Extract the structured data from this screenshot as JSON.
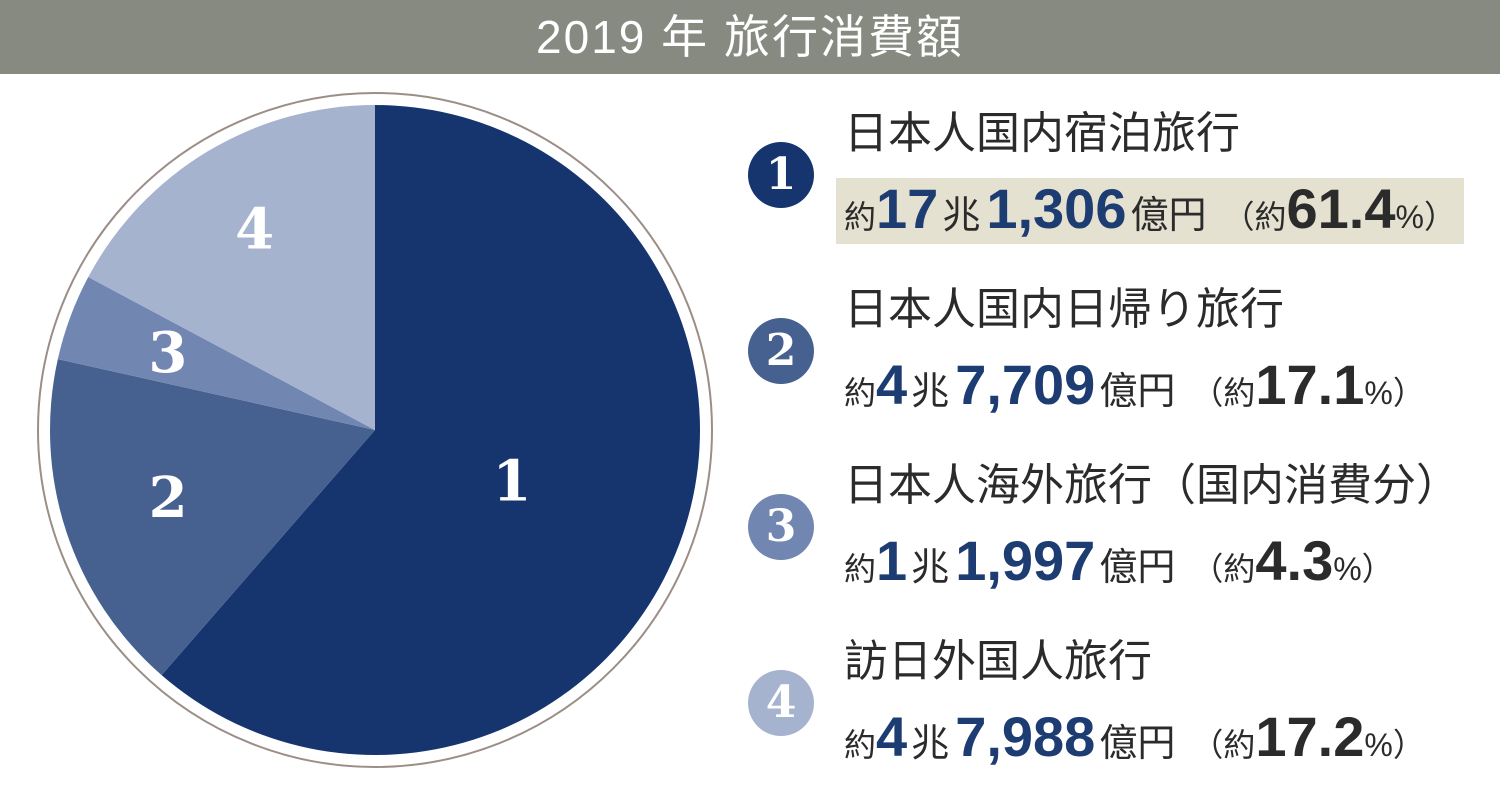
{
  "header": {
    "title": "2019 年 旅行消費額",
    "bg_color": "#878a80",
    "text_color": "#ffffff"
  },
  "chart_data": {
    "type": "pie",
    "title": "2019 年 旅行消費額",
    "unit": "億円",
    "direction": "clockwise",
    "start_angle_deg": 0,
    "categories": [
      "日本人国内宿泊旅行",
      "日本人国内日帰り旅行",
      "日本人海外旅行（国内消費分）",
      "訪日外国人旅行"
    ],
    "values_oku_yen": [
      171306,
      47709,
      11997,
      47988
    ],
    "percents": [
      61.4,
      17.1,
      4.3,
      17.2
    ],
    "slice_labels": [
      "1",
      "2",
      "3",
      "4"
    ],
    "colors": [
      "#16356f",
      "#46618f",
      "#7187b2",
      "#a6b3cf"
    ],
    "ring_color": "#9c8d87",
    "slice_label_color": "#ffffff",
    "legend_position": "right"
  },
  "legend": {
    "highlight_color": "#e5e1d1",
    "number_color": "#1c3c72",
    "text_color": "#2b2b2b",
    "items": [
      {
        "num": "1",
        "title": "日本人国内宿泊旅行",
        "approx": "約",
        "cho": "17",
        "cho_unit": "兆",
        "oku": "1,306",
        "oku_unit": "億円",
        "paren_open": "（約",
        "percent": "61.4",
        "paren_close": "%）",
        "badge_color": "#16356f",
        "highlighted": true
      },
      {
        "num": "2",
        "title": "日本人国内日帰り旅行",
        "approx": "約",
        "cho": "4",
        "cho_unit": "兆",
        "oku": "7,709",
        "oku_unit": "億円",
        "paren_open": "（約",
        "percent": "17.1",
        "paren_close": "%）",
        "badge_color": "#46618f",
        "highlighted": false
      },
      {
        "num": "3",
        "title": "日本人海外旅行（国内消費分）",
        "approx": "約",
        "cho": "1",
        "cho_unit": "兆",
        "oku": "1,997",
        "oku_unit": "億円",
        "paren_open": "（約",
        "percent": "4.3",
        "paren_close": "%）",
        "badge_color": "#7187b2",
        "highlighted": false
      },
      {
        "num": "4",
        "title": "訪日外国人旅行",
        "approx": "約",
        "cho": "4",
        "cho_unit": "兆",
        "oku": "7,988",
        "oku_unit": "億円",
        "paren_open": "（約",
        "percent": "17.2",
        "paren_close": "%）",
        "badge_color": "#a6b3cf",
        "highlighted": false
      }
    ]
  }
}
